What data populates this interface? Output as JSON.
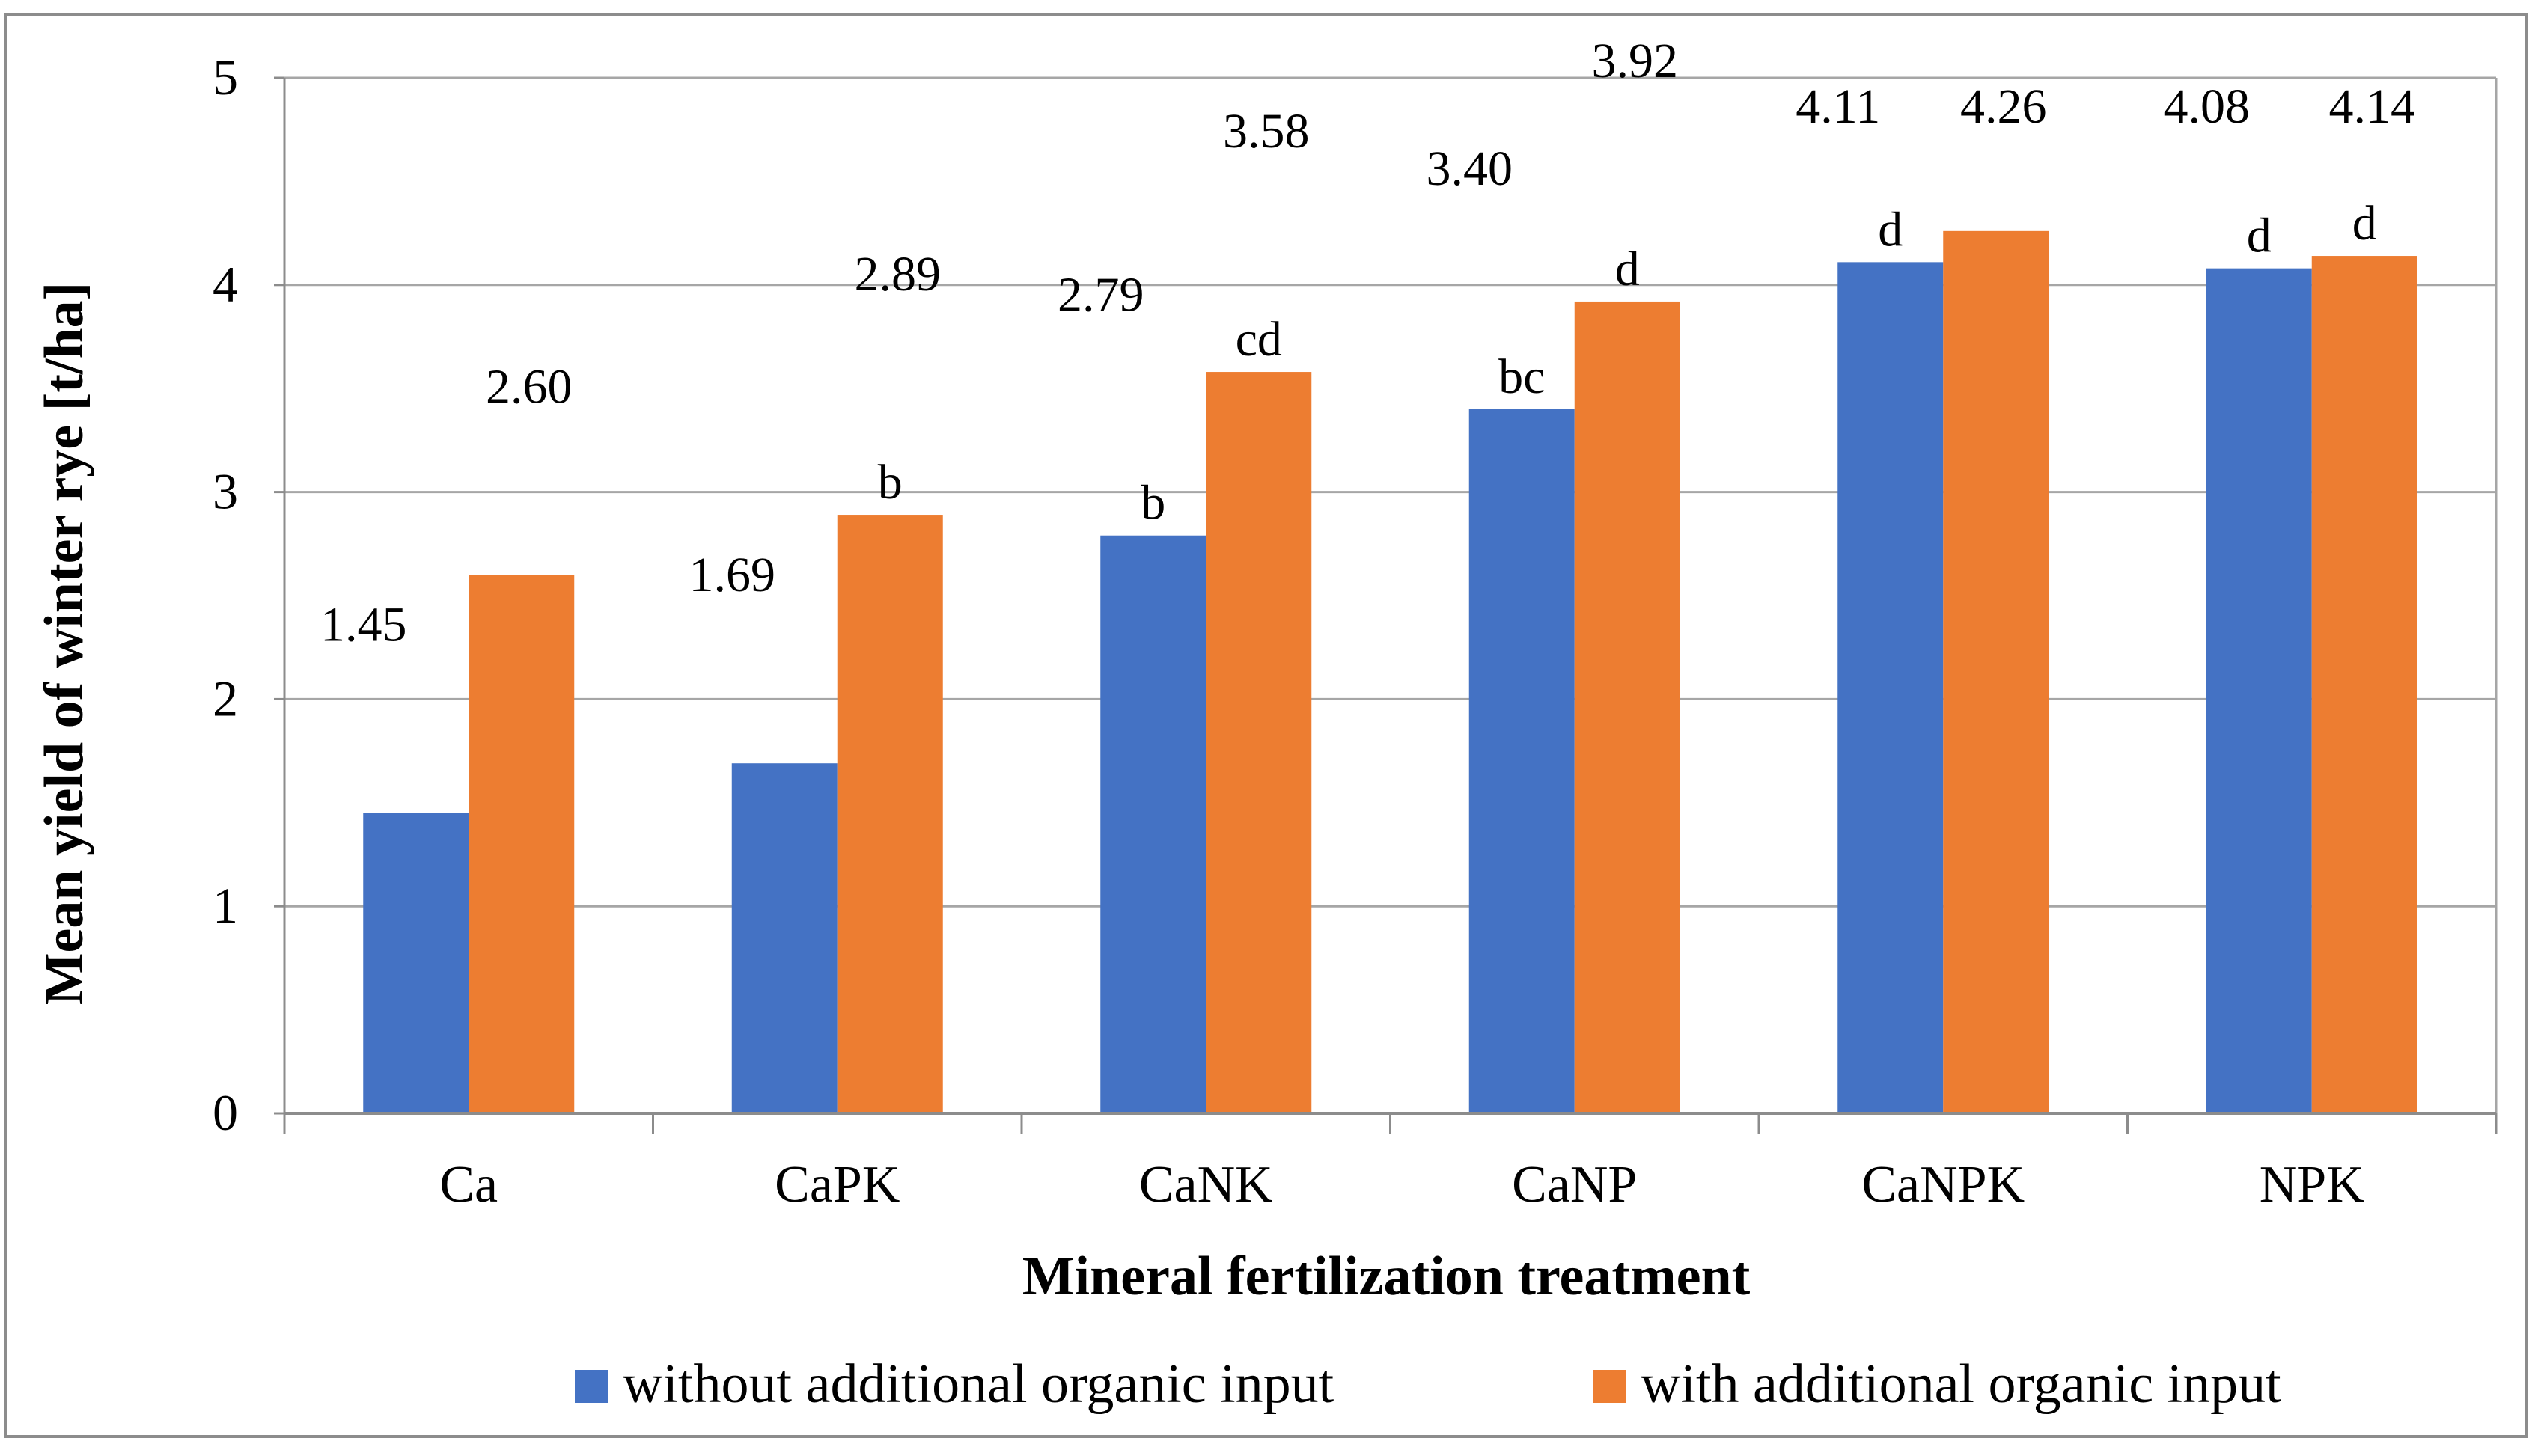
{
  "chart_data": {
    "type": "bar",
    "xlabel": "Mineral fertilization treatment",
    "ylabel": "Mean yield of winter rye [t/ha]",
    "ylim": [
      0,
      5
    ],
    "yticks": [
      "0",
      "1",
      "2",
      "3",
      "4",
      "5"
    ],
    "grid": true,
    "legend_position": "bottom",
    "categories": [
      "Ca",
      "CaPK",
      "CaNK",
      "CaNP",
      "CaNPK",
      "NPK"
    ],
    "series": [
      {
        "name": "without additional organic input",
        "color": "#4472C4",
        "values": [
          1.45,
          1.69,
          2.79,
          3.4,
          4.11,
          4.08
        ],
        "value_labels": [
          "1.45",
          "1.69",
          "2.79",
          "3.40",
          "4.11",
          "4.08"
        ],
        "significance": [
          "",
          "",
          "b",
          "bc",
          "d",
          "d"
        ]
      },
      {
        "name": "with additional organic input",
        "color": "#ED7D31",
        "values": [
          2.6,
          2.89,
          3.58,
          3.92,
          4.26,
          4.14
        ],
        "value_labels": [
          "2.60",
          "2.89",
          "3.58",
          "3.92",
          "4.26",
          "4.14"
        ],
        "significance": [
          "",
          "b",
          "cd",
          "d",
          "",
          "d"
        ]
      }
    ]
  }
}
